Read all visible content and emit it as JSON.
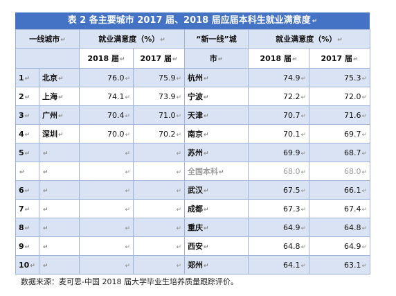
{
  "table": {
    "title": "表 2 各主要城市 2017 届、2018 届应届本科生就业满意度",
    "para_mark": "↵",
    "headers": {
      "tier1_city": "一线城市",
      "satisfaction": "就业满意度（%）",
      "new_tier1_city_line1": "“新一线”城",
      "new_tier1_city_line2": "市",
      "satisfaction_right": "就业满意度（%）",
      "y2018": "2018 届",
      "y2017": "2017 届",
      "y2018_right": "2018 届",
      "y2017_right": "2017 届"
    },
    "rows": [
      {
        "rank": "1",
        "city": "北京",
        "v2018": "76.0",
        "v2017": "75.9",
        "ncity": "杭州",
        "n2018": "74.9",
        "n2017": "75.3"
      },
      {
        "rank": "2",
        "city": "上海",
        "v2018": "74.1",
        "v2017": "73.9",
        "ncity": "宁波",
        "n2018": "72.2",
        "n2017": "72.0"
      },
      {
        "rank": "3",
        "city": "广州",
        "v2018": "70.4",
        "v2017": "71.0",
        "ncity": "天津",
        "n2018": "70.7",
        "n2017": "71.6"
      },
      {
        "rank": "4",
        "city": "深圳",
        "v2018": "70.0",
        "v2017": "70.2",
        "ncity": "南京",
        "n2018": "70.1",
        "n2017": "69.7"
      },
      {
        "rank": "5",
        "city": "",
        "v2018": "",
        "v2017": "",
        "ncity": "苏州",
        "n2018": "69.9",
        "n2017": "68.7"
      },
      {
        "rank": "",
        "city": "",
        "v2018": "",
        "v2017": "",
        "ncity": "全国本科",
        "n2018": "68.0",
        "n2017": "68.0",
        "muted": true
      },
      {
        "rank": "6",
        "city": "",
        "v2018": "",
        "v2017": "",
        "ncity": "武汉",
        "n2018": "67.5",
        "n2017": "66.1"
      },
      {
        "rank": "7",
        "city": "",
        "v2018": "",
        "v2017": "",
        "ncity": "成都",
        "n2018": "67.3",
        "n2017": "67.4"
      },
      {
        "rank": "8",
        "city": "",
        "v2018": "",
        "v2017": "",
        "ncity": "重庆",
        "n2018": "64.9",
        "n2017": "64.8"
      },
      {
        "rank": "9",
        "city": "",
        "v2018": "",
        "v2017": "",
        "ncity": "西安",
        "n2018": "64.8",
        "n2017": "64.9"
      },
      {
        "rank": "10",
        "city": "",
        "v2018": "",
        "v2017": "",
        "ncity": "郑州",
        "n2018": "64.1",
        "n2017": "63.1"
      }
    ]
  },
  "source_note": "数据来源：麦可思-中国 2018 届大学毕业生培养质量跟踪评价。"
}
